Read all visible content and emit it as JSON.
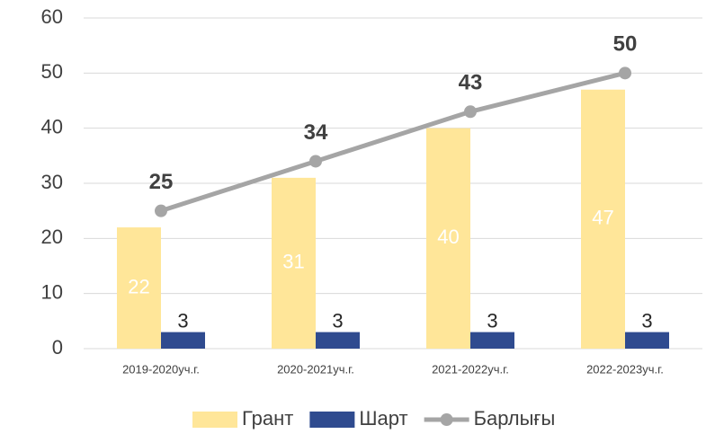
{
  "chart_data": {
    "type": "bar",
    "categories": [
      "2019-2020уч.г.",
      "2020-2021уч.г.",
      "2021-2022уч.г.",
      "2022-2023уч.г."
    ],
    "series": [
      {
        "name": "Грант",
        "color": "#FFE699",
        "values": [
          22,
          31,
          40,
          47
        ]
      },
      {
        "name": "Шарт",
        "color": "#2F4B8F",
        "values": [
          3,
          3,
          3,
          3
        ]
      },
      {
        "name": "Барлығы",
        "type": "line",
        "color": "#A5A5A5",
        "values": [
          25,
          34,
          43,
          50
        ]
      }
    ],
    "ylim": [
      0,
      60
    ],
    "yticks": [
      0,
      10,
      20,
      30,
      40,
      50,
      60
    ],
    "grid": true,
    "legend": "bottom"
  }
}
